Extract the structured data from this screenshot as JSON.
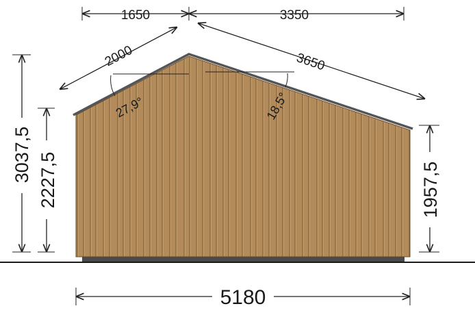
{
  "colors": {
    "wood": "#b38b5b",
    "wood_dark": "#7a5a35",
    "roof_edge": "#555555",
    "base": "#4a4a4a",
    "ground": "#1a1a1a",
    "dimension": "#222222",
    "background": "#ffffff"
  },
  "icons": {
    "arrowhead": "arrowhead-icon"
  },
  "dimensions": {
    "left_run": "1650",
    "right_run": "3350",
    "left_slope": "2000",
    "right_slope": "3650",
    "left_angle": "27,9°",
    "right_angle": "18,5°",
    "total_height": "3037,5",
    "left_wall_height": "2227,5",
    "right_wall_height": "1957,5",
    "total_width": "5180"
  }
}
